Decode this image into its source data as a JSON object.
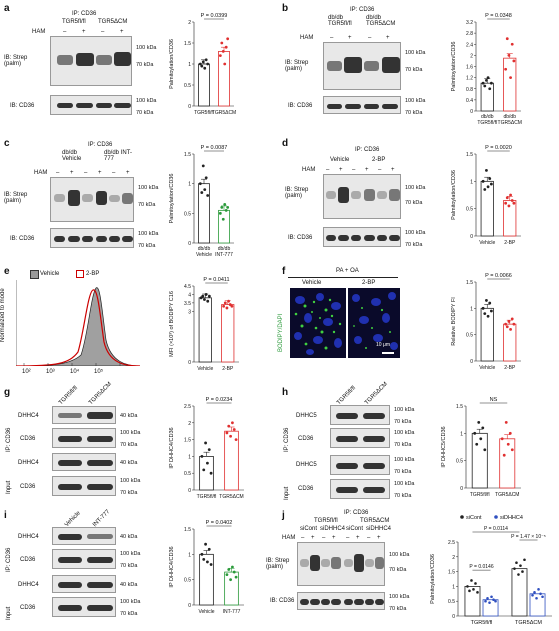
{
  "panel_labels": {
    "a": "a",
    "b": "b",
    "c": "c",
    "d": "d",
    "e": "e",
    "f": "f",
    "g": "g",
    "h": "h",
    "i": "i",
    "j": "j"
  },
  "a": {
    "ip": "IP: CD36",
    "groups": [
      "TGR5fl/fl",
      "TGR5ΔCM"
    ],
    "ham": "HAM",
    "signs": [
      "–",
      "+",
      "–",
      "+"
    ],
    "ib_top": "IB: Strep (palm)",
    "ib_bottom": "IB: CD36",
    "mw": [
      "100 kDa",
      "70 kDa",
      "100 kDa",
      "70 kDa"
    ],
    "pval": "P = 0.0399"
  },
  "b": {
    "ip": "IP: CD36",
    "groups": [
      "db/db TGR5fl/fl",
      "db/db TGR5ΔCM"
    ],
    "ham": "HAM",
    "signs": [
      "–",
      "+",
      "–",
      "+"
    ],
    "ib_top": "IB: Strep (palm)",
    "ib_bottom": "IB: CD36",
    "mw": [
      "100 kDa",
      "70 kDa",
      "100 kDa",
      "70 kDa"
    ],
    "pval": "P = 0.0348"
  },
  "c": {
    "ip": "IP: CD36",
    "groups": [
      "db/db Vehicle",
      "db/db INT-777"
    ],
    "ham": "HAM",
    "signs": [
      "–",
      "+",
      "–",
      "+",
      "–",
      "+"
    ],
    "ib_top": "IB: Strep (palm)",
    "ib_bottom": "IB: CD36",
    "mw": [
      "100 kDa",
      "70 kDa",
      "100 kDa",
      "70 kDa"
    ],
    "pval": "P = 0.0087"
  },
  "d": {
    "ip": "IP: CD36",
    "groups": [
      "Vehicle",
      "2-BP"
    ],
    "ham": "HAM",
    "signs": [
      "–",
      "+",
      "–",
      "+",
      "–",
      "+"
    ],
    "ib_top": "IB: Strep (palm)",
    "ib_bottom": "IB: CD36",
    "mw": [
      "100 kDa",
      "70 kDa",
      "100 kDa",
      "70 kDa"
    ],
    "pval": "P = 0.0020"
  },
  "e": {
    "legend": [
      "Vehicle",
      "2-BP"
    ],
    "ylabel_hist": "Normalized to mode",
    "xticks": [
      "10²",
      "10³",
      "10⁴",
      "10⁵"
    ],
    "ylabel_bar": "MFI (×10³) of BODIPY C16",
    "pval": "P = 0.0411"
  },
  "f": {
    "title": "PA + OA",
    "cond": [
      "Vehicle",
      "2-BP"
    ],
    "side": "BODIPY/DAPI",
    "scale": "10 μm",
    "ylabel_bar": "Relative BODIPY FI",
    "pval": "P = 0.0066"
  },
  "g": {
    "lanes": [
      "TGR5fl/fl",
      "TGR5ΔCM"
    ],
    "rows": [
      "DHHC4",
      "CD36",
      "DHHC4",
      "CD36"
    ],
    "side1": "IP: CD36",
    "side2": "Input",
    "mw": [
      "40 kDa",
      "100 kDa",
      "70 kDa",
      "40 kDa",
      "100 kDa",
      "70 kDa"
    ],
    "ylabel_bar": "IP DHHC4/CD36",
    "pval": "P = 0.0234"
  },
  "h": {
    "lanes": [
      "TGR5fl/fl",
      "TGR5ΔCM"
    ],
    "rows": [
      "DHHC5",
      "CD36",
      "DHHC5",
      "CD36"
    ],
    "side1": "IP: CD36",
    "side2": "Input",
    "mw": [
      "100 kDa",
      "70 kDa",
      "100 kDa",
      "70 kDa",
      "100 kDa",
      "70 kDa",
      "100 kDa",
      "70 kDa"
    ],
    "ylabel_bar": "IP DHHC5/CD36",
    "pval": "NS"
  },
  "i": {
    "lanes": [
      "Vehicle",
      "INT-777"
    ],
    "rows": [
      "DHHC4",
      "CD36",
      "DHHC4",
      "CD36"
    ],
    "side1": "IP: CD36",
    "side2": "Input",
    "mw": [
      "40 kDa",
      "100 kDa",
      "70 kDa",
      "40 kDa",
      "100 kDa",
      "70 kDa"
    ],
    "ylabel_bar": "IP DHHC4/CD36",
    "pval": "P = 0.0402"
  },
  "j": {
    "ip": "IP: CD36",
    "groups": [
      "TGR5fl/fl",
      "TGR5ΔCM"
    ],
    "sub": [
      "siCont",
      "siDHHC4",
      "siCont",
      "siDHHC4"
    ],
    "ham": "HAM",
    "signs": [
      "–",
      "+",
      "–",
      "+",
      "–",
      "+",
      "–",
      "+"
    ],
    "ib_top": "IB: Strep (palm)",
    "ib_bottom": "IB: CD36",
    "mw": [
      "100 kDa",
      "70 kDa",
      "100 kDa",
      "70 kDa"
    ],
    "legend": [
      "siCont",
      "siDHHC4"
    ],
    "pvals": [
      "P = 0.0146",
      "P = 0.0114",
      "P = 1.47 × 10⁻⁵"
    ]
  },
  "chart_data": [
    {
      "panel": "a",
      "type": "bar",
      "categories": [
        "TGR5fl/fl",
        "TGR5ΔCM"
      ],
      "values": [
        1.0,
        1.3
      ],
      "ylabel": "Palmitoylation/CD36",
      "ylim": [
        0,
        2.0
      ],
      "yticks": [
        0,
        0.5,
        1.0,
        1.5,
        2.0
      ],
      "points": [
        [
          1.0,
          0.95,
          1.05,
          0.9,
          1.1,
          1.0
        ],
        [
          1.2,
          1.5,
          1.3,
          1.0,
          1.4,
          1.6
        ]
      ],
      "colors": [
        "#222222",
        "#e03030"
      ]
    },
    {
      "panel": "b",
      "type": "bar",
      "categories": [
        "db/db TGR5fl/fl",
        "db/db TGR5ΔCM"
      ],
      "values": [
        1.0,
        1.9
      ],
      "ylabel": "Palmitoylation/CD36",
      "ylim": [
        0,
        3.2
      ],
      "yticks": [
        0,
        0.4,
        0.8,
        1.2,
        1.6,
        2.0,
        2.4,
        2.8,
        3.2
      ],
      "points": [
        [
          1.0,
          0.9,
          1.1,
          1.2,
          0.8,
          1.0
        ],
        [
          1.5,
          2.6,
          2.0,
          1.2,
          2.4,
          1.8
        ]
      ],
      "colors": [
        "#222222",
        "#e03030"
      ]
    },
    {
      "panel": "c",
      "type": "bar",
      "categories": [
        "db/db Vehicle",
        "db/db INT-777"
      ],
      "values": [
        1.0,
        0.55
      ],
      "ylabel": "Palmitoylation/CD36",
      "ylim": [
        0,
        1.5
      ],
      "yticks": [
        0,
        0.5,
        1.0,
        1.5
      ],
      "points": [
        [
          1.0,
          0.85,
          1.3,
          0.9,
          1.1,
          0.8
        ],
        [
          0.5,
          0.6,
          0.4,
          0.65,
          0.55,
          0.6
        ]
      ],
      "colors": [
        "#222222",
        "#2a9a3a"
      ]
    },
    {
      "panel": "d",
      "type": "bar",
      "categories": [
        "Vehicle",
        "2-BP"
      ],
      "values": [
        1.0,
        0.65
      ],
      "ylabel": "Palmitoylation/CD36",
      "ylim": [
        0,
        1.5
      ],
      "yticks": [
        0,
        0.5,
        1.0,
        1.5
      ],
      "points": [
        [
          1.0,
          0.85,
          1.2,
          0.9,
          1.05,
          0.95
        ],
        [
          0.6,
          0.7,
          0.55,
          0.75,
          0.65,
          0.6
        ]
      ],
      "colors": [
        "#222222",
        "#e03030"
      ]
    },
    {
      "panel": "e",
      "type": "bar",
      "categories": [
        "Vehicle",
        "2-BP"
      ],
      "values": [
        3.8,
        3.4
      ],
      "ylabel": "MFI (×10³) of BODIPY C16",
      "ylim": [
        0,
        4.5
      ],
      "yticks": [
        0,
        3.0,
        3.5,
        4.0,
        4.5
      ],
      "points": [
        [
          3.8,
          3.9,
          3.7,
          4.0,
          3.6,
          3.9
        ],
        [
          3.3,
          3.5,
          3.2,
          3.6,
          3.4,
          3.3
        ]
      ],
      "colors": [
        "#222222",
        "#e03030"
      ]
    },
    {
      "panel": "f",
      "type": "bar",
      "categories": [
        "Vehicle",
        "2-BP"
      ],
      "values": [
        1.0,
        0.7
      ],
      "ylabel": "Relative BODIPY FI",
      "ylim": [
        0,
        1.5
      ],
      "yticks": [
        0,
        0.5,
        1.0,
        1.5
      ],
      "points": [
        [
          1.0,
          0.9,
          1.15,
          0.85,
          1.1,
          0.95
        ],
        [
          0.7,
          0.65,
          0.75,
          0.6,
          0.8,
          0.7
        ]
      ],
      "colors": [
        "#222222",
        "#e03030"
      ]
    },
    {
      "panel": "g",
      "type": "bar",
      "categories": [
        "TGR5fl/fl",
        "TGR5ΔCM"
      ],
      "values": [
        1.0,
        1.75
      ],
      "ylabel": "IP DHHC4/CD36",
      "ylim": [
        0,
        2.5
      ],
      "yticks": [
        0,
        0.5,
        1.0,
        1.5,
        2.0,
        2.5
      ],
      "points": [
        [
          1.0,
          0.6,
          1.4,
          0.8,
          1.2,
          0.5
        ],
        [
          1.7,
          1.9,
          1.6,
          2.0,
          1.8,
          1.5
        ]
      ],
      "colors": [
        "#222222",
        "#e03030"
      ]
    },
    {
      "panel": "h",
      "type": "bar",
      "categories": [
        "TGR5fl/fl",
        "TGR5ΔCM"
      ],
      "values": [
        1.0,
        0.9
      ],
      "ylabel": "IP DHHC5/CD36",
      "ylim": [
        0,
        1.5
      ],
      "yticks": [
        0,
        0.5,
        1.0,
        1.5
      ],
      "points": [
        [
          1.0,
          0.8,
          1.2,
          0.9,
          1.1,
          0.7
        ],
        [
          0.9,
          0.6,
          1.2,
          0.8,
          1.0,
          0.7
        ]
      ],
      "colors": [
        "#222222",
        "#e03030"
      ]
    },
    {
      "panel": "i",
      "type": "bar",
      "categories": [
        "Vehicle",
        "INT-777"
      ],
      "values": [
        1.0,
        0.65
      ],
      "ylabel": "IP DHHC4/CD36",
      "ylim": [
        0,
        1.5
      ],
      "yticks": [
        0,
        0.5,
        1.0,
        1.5
      ],
      "points": [
        [
          1.0,
          0.9,
          1.2,
          0.85,
          1.1,
          0.8
        ],
        [
          0.6,
          0.7,
          0.5,
          0.75,
          0.65,
          0.55
        ]
      ],
      "colors": [
        "#222222",
        "#2a9a3a"
      ]
    },
    {
      "panel": "j",
      "type": "bar",
      "categories": [
        "TGR5fl/fl",
        "TGR5ΔCM"
      ],
      "series": [
        {
          "name": "siCont",
          "values": [
            1.0,
            1.6
          ]
        },
        {
          "name": "siDHHC4",
          "values": [
            0.55,
            0.75
          ]
        }
      ],
      "ylabel": "Palmitoylation/CD36",
      "ylim": [
        0,
        2.5
      ],
      "yticks": [
        0,
        0.5,
        1.0,
        1.5,
        2.0,
        2.5
      ],
      "points": [
        [
          [
            1.0,
            0.85,
            1.2,
            0.9,
            1.1,
            0.8
          ],
          [
            0.5,
            0.6,
            0.45,
            0.65,
            0.55,
            0.5
          ]
        ],
        [
          [
            1.6,
            1.8,
            1.4,
            1.7,
            1.5,
            1.9
          ],
          [
            0.7,
            0.8,
            0.6,
            0.9,
            0.75,
            0.65
          ]
        ]
      ],
      "colors": [
        "#222222",
        "#3050c0"
      ]
    }
  ]
}
